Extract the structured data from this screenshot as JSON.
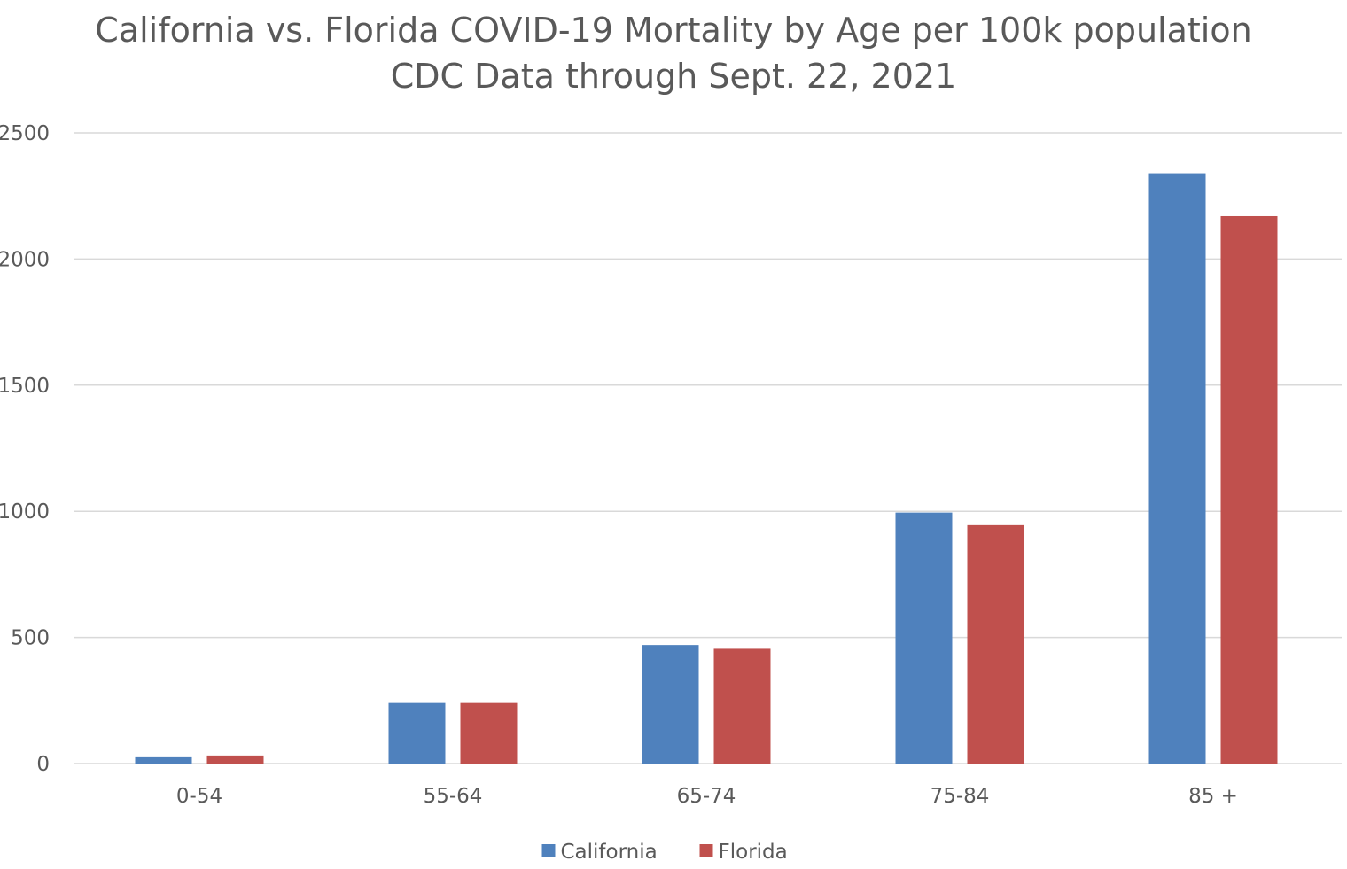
{
  "chart_data": {
    "type": "bar",
    "title": "California vs. Florida COVID-19 Mortality by Age per 100k population",
    "subtitle": "CDC Data through Sept. 22, 2021",
    "xlabel": "",
    "ylabel": "",
    "categories": [
      "0-54",
      "55-64",
      "65-74",
      "75-84",
      "85 +"
    ],
    "series": [
      {
        "name": "California",
        "color": "#4f81bd",
        "values": [
          25,
          240,
          470,
          995,
          2340
        ]
      },
      {
        "name": "Florida",
        "color": "#c0504d",
        "values": [
          32,
          240,
          455,
          945,
          2170
        ]
      }
    ],
    "ylim": [
      0,
      2500
    ],
    "yticks": [
      0,
      500,
      1000,
      1500,
      2000,
      2500
    ],
    "grid": true,
    "legend_position": "bottom",
    "colors": {
      "gridline": "#d9d9d9",
      "tick_text": "#595959",
      "title_text": "#595959"
    }
  }
}
